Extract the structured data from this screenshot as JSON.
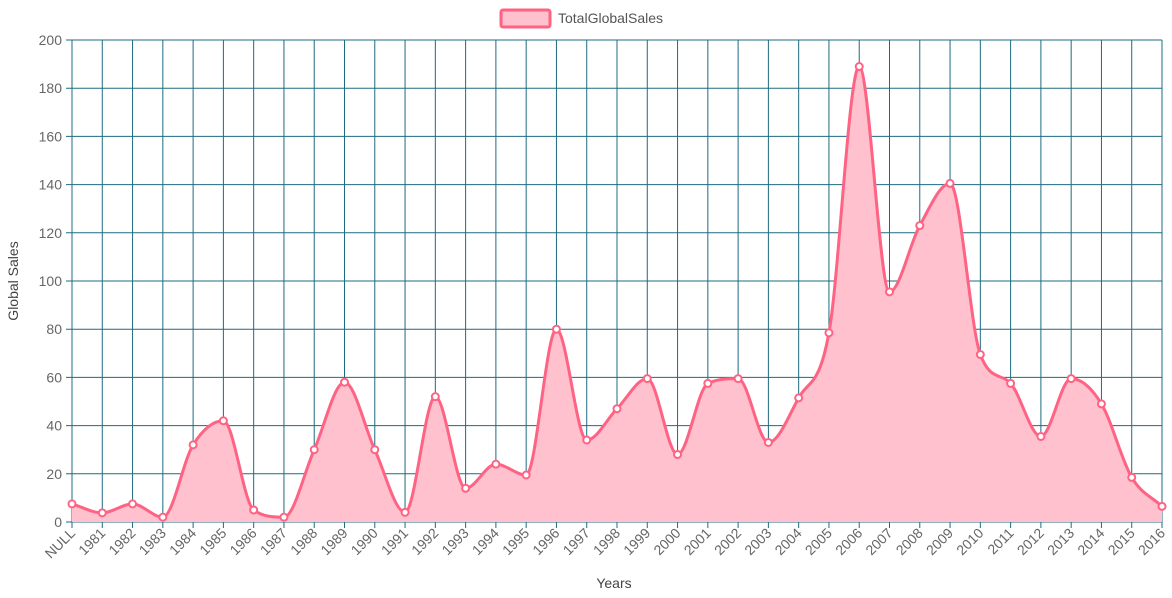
{
  "chart_data": {
    "type": "area",
    "categories": [
      "NULL",
      "1981",
      "1982",
      "1983",
      "1984",
      "1985",
      "1986",
      "1987",
      "1988",
      "1989",
      "1990",
      "1991",
      "1992",
      "1993",
      "1994",
      "1995",
      "1996",
      "1997",
      "1998",
      "1999",
      "2000",
      "2001",
      "2002",
      "2003",
      "2004",
      "2005",
      "2006",
      "2007",
      "2008",
      "2009",
      "2010",
      "2011",
      "2012",
      "2013",
      "2014",
      "2015",
      "2016"
    ],
    "series": [
      {
        "name": "TotalGlobalSales",
        "values": [
          7.5,
          3.8,
          7.5,
          2.0,
          32.0,
          42.0,
          5.0,
          2.0,
          30.0,
          58.0,
          30.0,
          4.0,
          52.0,
          14.0,
          24.0,
          19.5,
          80.0,
          34.0,
          47.0,
          59.5,
          28.0,
          57.5,
          59.5,
          33.0,
          51.5,
          78.5,
          189.0,
          95.5,
          123.0,
          140.5,
          69.5,
          57.5,
          35.5,
          59.5,
          49.0,
          18.5,
          6.5
        ]
      }
    ],
    "xlabel": "Years",
    "ylabel": "Global Sales",
    "ylim": [
      0,
      200
    ],
    "yticks": [
      0,
      20,
      40,
      60,
      80,
      100,
      120,
      140,
      160,
      180,
      200
    ],
    "grid": true,
    "legend": "top-center",
    "colors": {
      "line": "#ff6384",
      "fill": "#ffc1ce",
      "grid": "#1d6b80",
      "tick": "#666666"
    }
  }
}
